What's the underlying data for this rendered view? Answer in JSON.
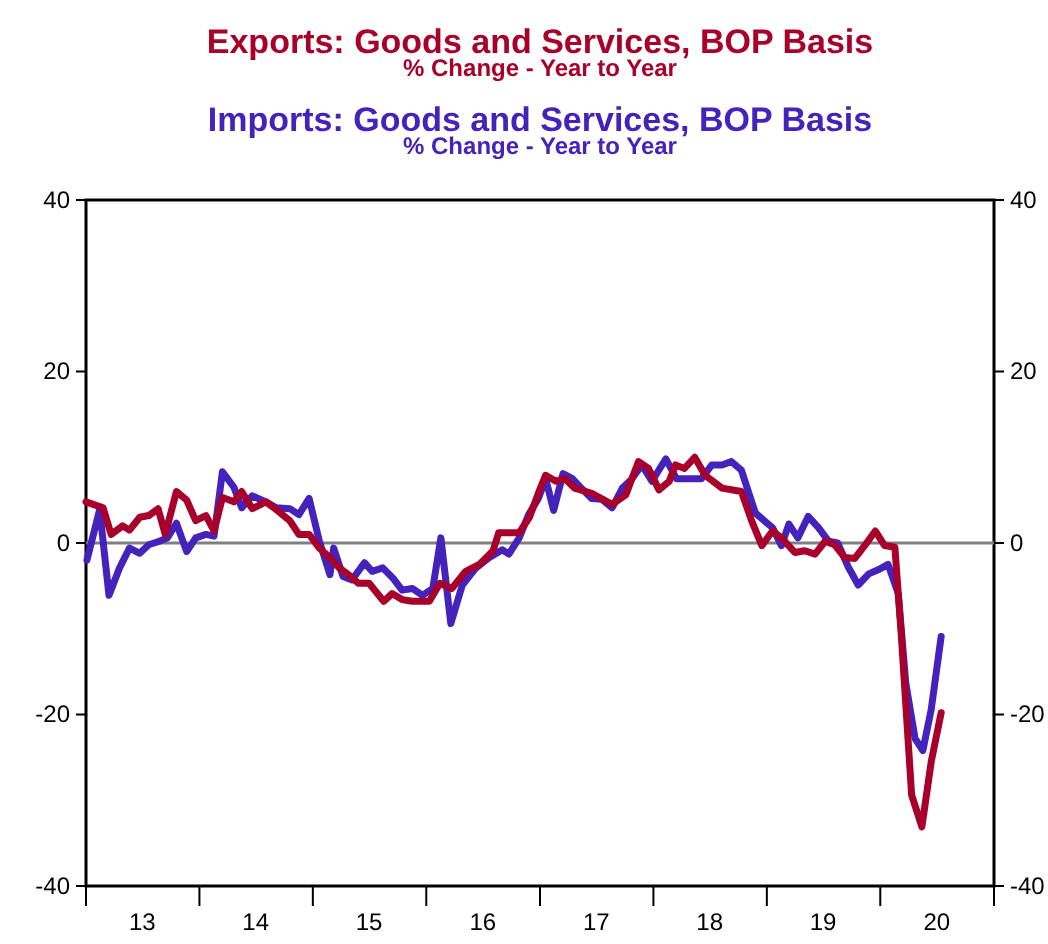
{
  "chart_data": {
    "type": "line",
    "subtitle": "% Change - Year to Year",
    "legend": "top",
    "line_style": "solid",
    "marker": "none",
    "grid": false,
    "xlim": [
      "2013-01",
      "2021-01"
    ],
    "xticks": [
      {
        "value": "2013-01",
        "label": null
      },
      {
        "value": "2013-07",
        "label": "13"
      },
      {
        "value": "2014-01",
        "label": null
      },
      {
        "value": "2014-07",
        "label": "14"
      },
      {
        "value": "2015-01",
        "label": null
      },
      {
        "value": "2015-07",
        "label": "15"
      },
      {
        "value": "2016-01",
        "label": null
      },
      {
        "value": "2016-07",
        "label": "16"
      },
      {
        "value": "2017-01",
        "label": null
      },
      {
        "value": "2017-07",
        "label": "17"
      },
      {
        "value": "2018-01",
        "label": null
      },
      {
        "value": "2018-07",
        "label": "18"
      },
      {
        "value": "2019-01",
        "label": null
      },
      {
        "value": "2019-07",
        "label": "19"
      },
      {
        "value": "2020-01",
        "label": null
      },
      {
        "value": "2020-07",
        "label": "20"
      },
      {
        "value": "2021-01",
        "label": null
      }
    ],
    "ylim": [
      -40,
      40
    ],
    "yticks": [
      -40,
      -20,
      0,
      20,
      40
    ],
    "y2lim": [
      -40,
      40
    ],
    "y2ticks": [
      -40,
      -20,
      0,
      20,
      40
    ],
    "ref_lines": [
      {
        "axis": "y",
        "value": 0,
        "color": "#808080"
      }
    ],
    "series": [
      {
        "name": "Imports: Goods and Services, BOP Basis",
        "color": "#4422bb",
        "x": [
          "2013-01-04",
          "2013-02-14",
          "2013-03-16",
          "2013-04-19",
          "2013-05-21",
          "2013-06-23",
          "2013-07-22",
          "2013-08-25",
          "2013-09-20",
          "2013-10-19",
          "2013-11-21",
          "2013-12-20",
          "2014-01-22",
          "2014-02-17",
          "2014-03-16",
          "2014-04-22",
          "2014-05-17",
          "2014-06-20",
          "2014-08-03",
          "2014-09-05",
          "2014-10-19",
          "2014-11-17",
          "2014-12-20",
          "2015-01-22",
          "2015-02-25",
          "2015-03-09",
          "2015-04-08",
          "2015-05-07",
          "2015-06-16",
          "2015-07-11",
          "2015-08-14",
          "2015-09-16",
          "2015-10-15",
          "2015-11-17",
          "2015-12-20",
          "2016-01-22",
          "2016-02-17",
          "2016-03-20",
          "2016-04-26",
          "2016-06-09",
          "2016-07-22",
          "2016-09-02",
          "2016-09-23",
          "2016-10-26",
          "2016-11-25",
          "2016-12-27",
          "2017-01-19",
          "2017-02-14",
          "2017-03-16",
          "2017-04-15",
          "2017-05-14",
          "2017-06-16",
          "2017-07-19",
          "2017-08-21",
          "2017-09-23",
          "2017-10-22",
          "2017-11-25",
          "2017-12-27",
          "2018-02-10",
          "2018-03-16",
          "2018-04-22",
          "2018-06-05",
          "2018-07-08",
          "2018-08-10",
          "2018-09-09",
          "2018-10-11",
          "2018-11-25",
          "2018-12-27",
          "2019-01-19",
          "2019-02-17",
          "2019-03-13",
          "2019-04-11",
          "2019-05-14",
          "2019-06-16",
          "2019-07-19",
          "2019-08-17",
          "2019-09-20",
          "2019-10-22",
          "2019-11-25",
          "2019-12-27",
          "2020-01-26",
          "2020-02-28",
          "2020-03-23",
          "2020-04-22",
          "2020-05-17",
          "2020-06-13",
          "2020-07-15"
        ],
        "values": [
          -2,
          3.9,
          -6.1,
          -2.9,
          -0.6,
          -1.2,
          -0.2,
          0.2,
          0.6,
          2.3,
          -1,
          0.6,
          1,
          0.8,
          8.3,
          6.5,
          4.1,
          5.5,
          4.8,
          4.1,
          4,
          3.3,
          5.2,
          0.2,
          -3.7,
          -0.6,
          -3.9,
          -4.3,
          -2.3,
          -3.3,
          -2.9,
          -4.1,
          -5.5,
          -5.3,
          -6.1,
          -5.3,
          0.6,
          -9.4,
          -4.9,
          -2.9,
          -1.7,
          -0.8,
          -1.3,
          0.6,
          3.3,
          5.2,
          7.5,
          3.8,
          8.1,
          7.5,
          6.4,
          5.2,
          5.1,
          4.1,
          6.4,
          7.4,
          9.1,
          7.2,
          9.8,
          7.5,
          7.5,
          7.5,
          9.1,
          9.1,
          9.5,
          8.5,
          3.5,
          2.5,
          1.8,
          -0.3,
          2.2,
          0.6,
          3.1,
          1.8,
          0.2,
          0,
          -2.8,
          -4.9,
          -3.6,
          -3.1,
          -2.5,
          -5.9,
          -16.3,
          -22.8,
          -24.2,
          -19.4,
          -10.9
        ]
      },
      {
        "name": "Exports: Goods and Services, BOP Basis",
        "color": "#a8002a",
        "x": [
          "2013-01-01",
          "2013-02-25",
          "2013-03-23",
          "2013-04-29",
          "2013-05-21",
          "2013-06-23",
          "2013-07-22",
          "2013-08-21",
          "2013-09-13",
          "2013-10-19",
          "2013-11-21",
          "2013-12-20",
          "2014-01-22",
          "2014-02-17",
          "2014-03-16",
          "2014-04-22",
          "2014-05-17",
          "2014-06-20",
          "2014-08-03",
          "2014-09-05",
          "2014-10-19",
          "2014-11-17",
          "2014-12-20",
          "2015-01-22",
          "2015-02-25",
          "2015-03-27",
          "2015-04-26",
          "2015-05-28",
          "2015-07-01",
          "2015-08-17",
          "2015-09-13",
          "2015-10-15",
          "2015-11-17",
          "2016-01-11",
          "2016-02-14",
          "2016-03-23",
          "2016-05-07",
          "2016-06-20",
          "2016-08-03",
          "2016-08-21",
          "2016-10-26",
          "2016-11-28",
          "2017-01-01",
          "2017-01-19",
          "2017-02-21",
          "2017-03-23",
          "2017-04-22",
          "2017-06-16",
          "2017-08-21",
          "2017-10-04",
          "2017-11-14",
          "2017-12-16",
          "2018-01-19",
          "2018-02-21",
          "2018-03-13",
          "2018-04-11",
          "2018-05-14",
          "2018-06-16",
          "2018-08-10",
          "2018-10-11",
          "2018-11-14",
          "2018-12-16",
          "2019-01-19",
          "2019-02-17",
          "2019-04-01",
          "2019-05-03",
          "2019-06-05",
          "2019-07-08",
          "2019-08-07",
          "2019-09-09",
          "2019-10-11",
          "2019-11-14",
          "2019-12-16",
          "2020-01-15",
          "2020-02-17",
          "2020-03-09",
          "2020-04-11",
          "2020-05-14",
          "2020-06-13",
          "2020-07-15"
        ],
        "values": [
          4.8,
          4.1,
          1,
          2,
          1.5,
          3,
          3.2,
          4,
          1,
          6,
          5,
          2.6,
          3.2,
          1.4,
          5.3,
          4.8,
          6,
          4,
          4.8,
          3.9,
          2.6,
          1,
          1,
          -0.6,
          -1.7,
          -2.9,
          -3.7,
          -4.7,
          -4.7,
          -6.8,
          -5.9,
          -6.6,
          -6.8,
          -6.8,
          -4.7,
          -5.3,
          -3.3,
          -2.5,
          -0.9,
          1.2,
          1.2,
          3,
          6.3,
          7.9,
          7.2,
          7.5,
          6.4,
          5.8,
          4.5,
          5.6,
          9.5,
          8.7,
          6.2,
          7.2,
          9.1,
          8.7,
          10,
          7.9,
          6.4,
          6,
          2.5,
          -0.3,
          1.4,
          0.6,
          -1.1,
          -0.9,
          -1.3,
          0.2,
          -0.2,
          -1.7,
          -1.8,
          -0.2,
          1.4,
          -0.3,
          -0.5,
          -10.9,
          -29.4,
          -33.1,
          -25.5,
          -19.8
        ]
      }
    ]
  }
}
